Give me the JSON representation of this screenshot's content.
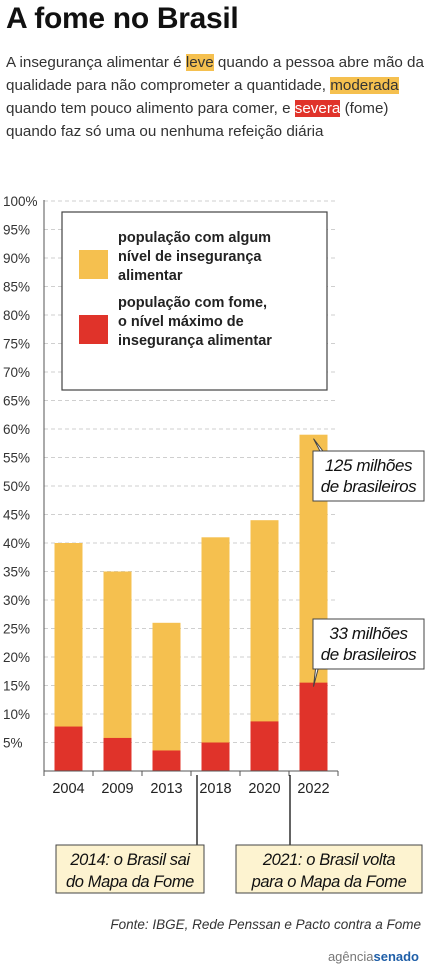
{
  "header": {
    "title": "A fome no Brasil",
    "intro_1": "A insegurança alimentar é ",
    "intro_leve": "leve",
    "intro_2": " quando a pessoa abre mão da qualidade para não comprometer a quantidade, ",
    "intro_moderada": "moderada",
    "intro_3": " quando tem pouco alimento para comer, e ",
    "intro_severa": "severa",
    "intro_4": " (fome) quando faz só uma ou nenhuma refeição diária"
  },
  "chart_data": {
    "type": "bar",
    "categories": [
      "2004",
      "2009",
      "2013",
      "2018",
      "2020",
      "2022"
    ],
    "series": [
      {
        "name": "população com algum nível de insegurança alimentar",
        "values": [
          40,
          35,
          26,
          41,
          44,
          59
        ],
        "color": "#f5c04f"
      },
      {
        "name": "população com fome, o nível máximo de insegurança alimentar",
        "values": [
          7.8,
          5.8,
          3.6,
          5,
          8.7,
          15.5
        ],
        "color": "#e0332a"
      }
    ],
    "ylim": [
      0,
      100
    ],
    "y_ticks": [
      "100%",
      "95%",
      "90%",
      "85%",
      "80%",
      "75%",
      "70%",
      "65%",
      "60%",
      "55%",
      "50%",
      "45%",
      "40%",
      "35%",
      "30%",
      "25%",
      "20%",
      "15%",
      "10%",
      "5%"
    ],
    "y_tick_values": [
      100,
      95,
      90,
      85,
      80,
      75,
      70,
      65,
      60,
      55,
      50,
      45,
      40,
      35,
      30,
      25,
      20,
      15,
      10,
      5
    ],
    "grid": true,
    "legend_position": "top-left",
    "legend": [
      {
        "color": "#f5c04f",
        "lines": [
          "população com algum",
          "nível de insegurança",
          "alimentar"
        ]
      },
      {
        "color": "#e0332a",
        "lines": [
          "população com fome,",
          "o nível máximo de",
          "insegurança alimentar"
        ]
      }
    ],
    "callouts": {
      "top": [
        "125 milhões",
        "de brasileiros"
      ],
      "bottom": [
        "33 milhões",
        "de brasileiros"
      ]
    },
    "annotations": [
      [
        "2014: o Brasil sai",
        "do Mapa da Fome"
      ],
      [
        "2021: o Brasil volta",
        "para o Mapa da Fome"
      ]
    ]
  },
  "footer": {
    "source": "Fonte: IBGE, Rede Penssan e Pacto contra a Fome",
    "logo_a": "agência",
    "logo_b": "senado"
  }
}
